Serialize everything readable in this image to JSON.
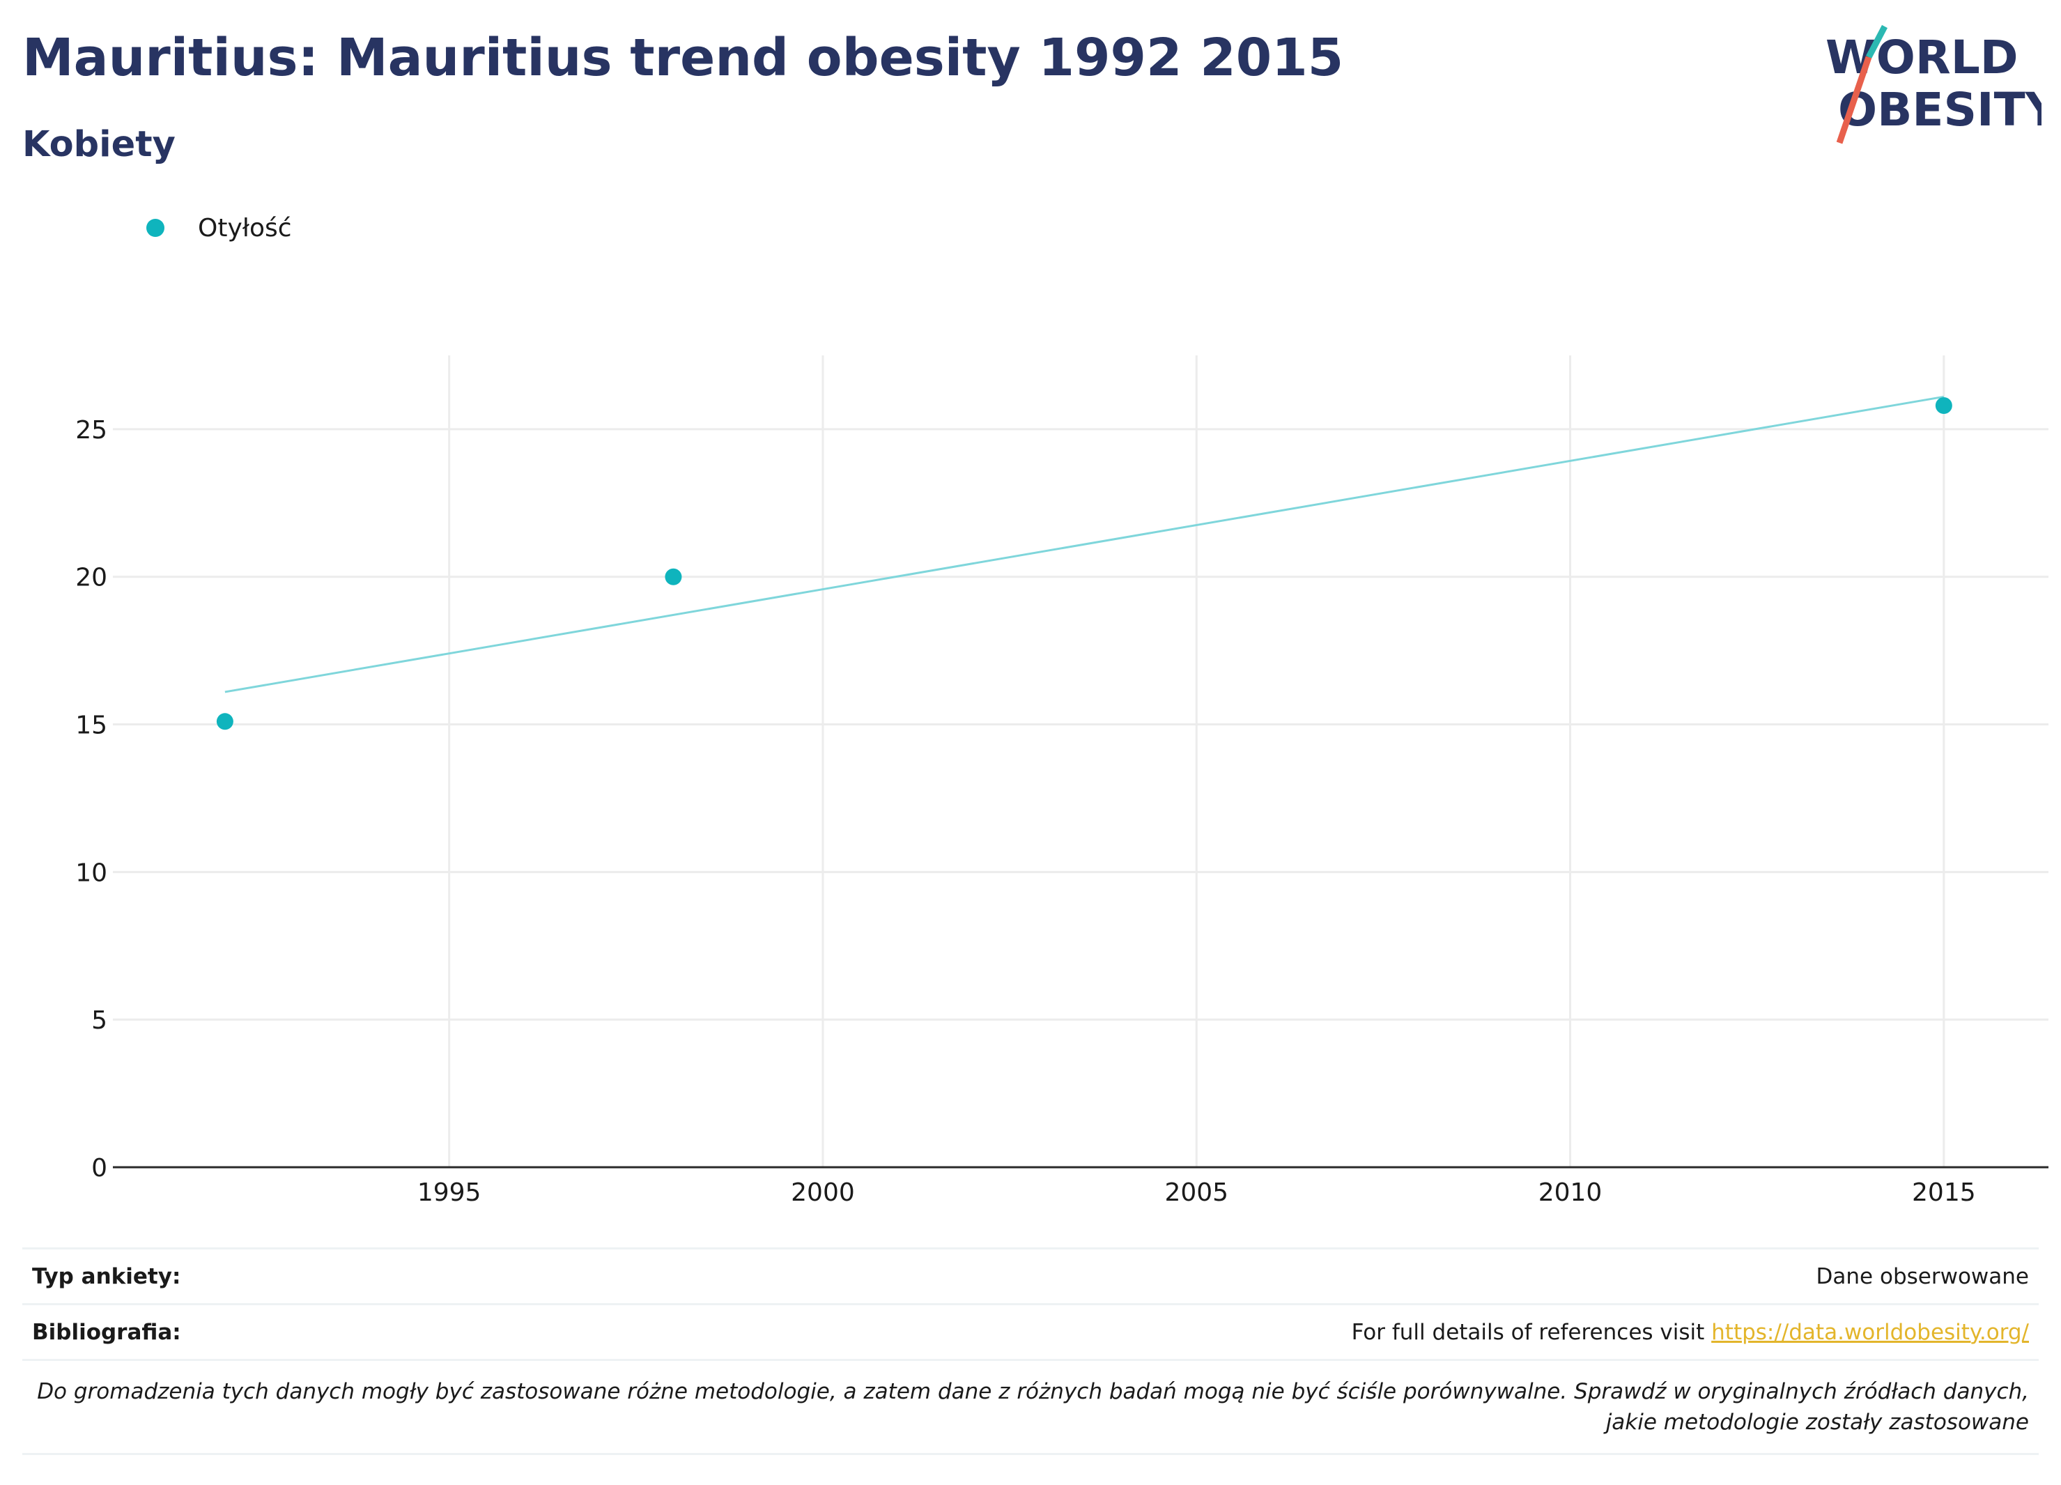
{
  "header": {
    "title": "Mauritius: Mauritius trend obesity 1992 2015",
    "subtitle": "Kobiety"
  },
  "logo": {
    "line1": "WORLD",
    "line2": "OBESITY"
  },
  "legend": {
    "label": "Otyłość"
  },
  "colors": {
    "accent": "#0fb4bd",
    "trend": "#7fd6db",
    "title": "#283462",
    "link": "#e3b52b",
    "logo_slash_teal": "#2bb8b2",
    "logo_slash_red": "#e8604c"
  },
  "chart_data": {
    "type": "scatter",
    "title": "Mauritius: Mauritius trend obesity 1992 2015",
    "subtitle": "Kobiety",
    "series": [
      {
        "name": "Otyłość",
        "points": [
          {
            "x": 1992,
            "y": 15.1
          },
          {
            "x": 1998,
            "y": 20.0
          },
          {
            "x": 2015,
            "y": 25.8
          }
        ]
      }
    ],
    "trend_line": {
      "from": {
        "x": 1992,
        "y": 16.1
      },
      "to": {
        "x": 2015,
        "y": 26.1
      }
    },
    "xlim": [
      1990.5,
      2016.4
    ],
    "ylim": [
      0,
      27.5
    ],
    "x_ticks": [
      1995,
      2000,
      2005,
      2010,
      2015
    ],
    "y_ticks": [
      0,
      5,
      10,
      15,
      20,
      25
    ],
    "grid": true,
    "legend_position": "top-left"
  },
  "footer": {
    "survey_type_label": "Typ ankiety:",
    "survey_type_value": "Dane obserwowane",
    "bibliography_label": "Bibliografia:",
    "bibliography_text": "For full details of references visit ",
    "bibliography_link": "https://data.worldobesity.org/",
    "note": "Do gromadzenia tych danych mogły być zastosowane różne metodologie, a zatem dane z różnych badań mogą nie być ściśle porównywalne. Sprawdź w oryginalnych źródłach danych, jakie metodologie zostały zastosowane"
  }
}
